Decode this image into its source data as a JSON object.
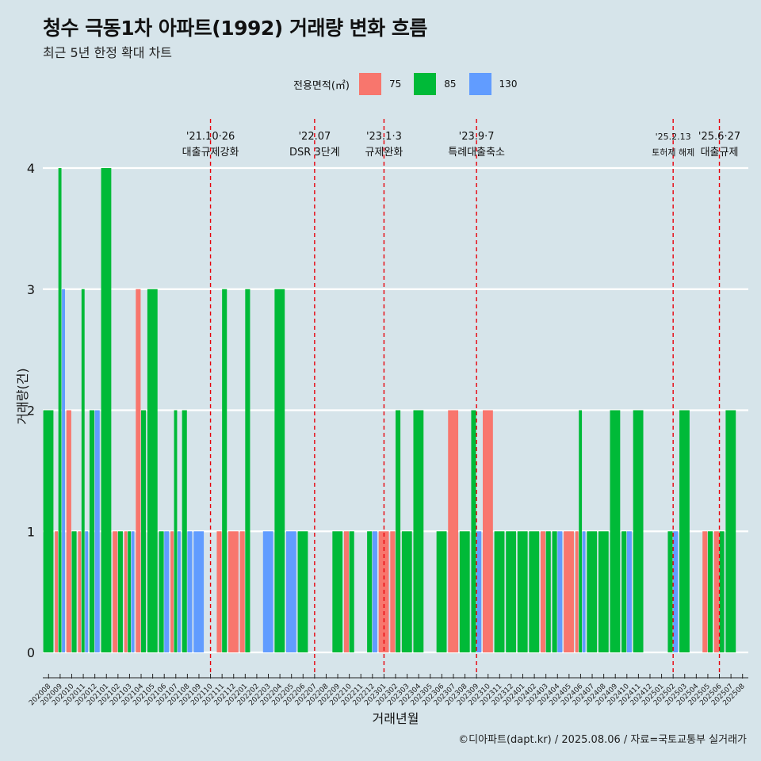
{
  "title": "청수 극동1차 아파트(1992) 거래량 변화 흐름",
  "subtitle": "최근 5년 한정 확대 차트",
  "caption": "©디아파트(dapt.kr) / 2025.08.06 / 자료=국토교통부 실거래가",
  "legend": {
    "title": "전용면적(㎡)",
    "items": [
      {
        "label": "75",
        "color": "#f8766d"
      },
      {
        "label": "85",
        "color": "#00ba38"
      },
      {
        "label": "130",
        "color": "#619cff"
      }
    ]
  },
  "chart_data": {
    "type": "bar",
    "xlabel": "거래년월",
    "ylabel": "거래량(건)",
    "ylim": [
      0,
      4
    ],
    "yticks": [
      0,
      1,
      2,
      3,
      4
    ],
    "months": [
      "202008",
      "202009",
      "202010",
      "202011",
      "202012",
      "202101",
      "202102",
      "202103",
      "202104",
      "202105",
      "202106",
      "202107",
      "202108",
      "202109",
      "202110",
      "202111",
      "202112",
      "202201",
      "202202",
      "202203",
      "202204",
      "202205",
      "202206",
      "202207",
      "202208",
      "202209",
      "202210",
      "202211",
      "202212",
      "202301",
      "202302",
      "202303",
      "202304",
      "202305",
      "202306",
      "202307",
      "202308",
      "202309",
      "202310",
      "202311",
      "202312",
      "202401",
      "202402",
      "202403",
      "202404",
      "202405",
      "202406",
      "202407",
      "202408",
      "202409",
      "202410",
      "202411",
      "202412",
      "202501",
      "202502",
      "202503",
      "202504",
      "202505",
      "202506",
      "202507",
      "202508"
    ],
    "series_colors": {
      "75": "#f8766d",
      "85": "#00ba38",
      "130": "#619cff"
    },
    "bars": [
      {
        "month": "202008",
        "groups": [
          [
            "85",
            2
          ]
        ]
      },
      {
        "month": "202009",
        "groups": [
          [
            "75",
            1
          ],
          [
            "85",
            4
          ],
          [
            "130",
            3
          ]
        ]
      },
      {
        "month": "202010",
        "groups": [
          [
            "75",
            2
          ],
          [
            "85",
            1
          ]
        ]
      },
      {
        "month": "202011",
        "groups": [
          [
            "75",
            1
          ],
          [
            "85",
            3
          ],
          [
            "130",
            1
          ]
        ]
      },
      {
        "month": "202012",
        "groups": [
          [
            "85",
            2
          ],
          [
            "130",
            2
          ]
        ]
      },
      {
        "month": "202101",
        "groups": [
          [
            "85",
            4
          ]
        ]
      },
      {
        "month": "202102",
        "groups": [
          [
            "75",
            1
          ],
          [
            "85",
            1
          ]
        ]
      },
      {
        "month": "202103",
        "groups": [
          [
            "75",
            1
          ],
          [
            "85",
            1
          ],
          [
            "130",
            1
          ]
        ]
      },
      {
        "month": "202104",
        "groups": [
          [
            "75",
            3
          ],
          [
            "85",
            2
          ]
        ]
      },
      {
        "month": "202105",
        "groups": [
          [
            "85",
            3
          ]
        ]
      },
      {
        "month": "202106",
        "groups": [
          [
            "85",
            1
          ],
          [
            "130",
            1
          ]
        ]
      },
      {
        "month": "202107",
        "groups": [
          [
            "75",
            1
          ],
          [
            "85",
            2
          ],
          [
            "130",
            1
          ]
        ]
      },
      {
        "month": "202108",
        "groups": [
          [
            "85",
            2
          ],
          [
            "130",
            1
          ]
        ]
      },
      {
        "month": "202109",
        "groups": [
          [
            "130",
            1
          ]
        ]
      },
      {
        "month": "202110",
        "groups": []
      },
      {
        "month": "202111",
        "groups": [
          [
            "75",
            1
          ],
          [
            "85",
            3
          ]
        ]
      },
      {
        "month": "202112",
        "groups": [
          [
            "75",
            1
          ]
        ]
      },
      {
        "month": "202201",
        "groups": [
          [
            "75",
            1
          ],
          [
            "85",
            3
          ]
        ]
      },
      {
        "month": "202202",
        "groups": []
      },
      {
        "month": "202203",
        "groups": [
          [
            "130",
            1
          ]
        ]
      },
      {
        "month": "202204",
        "groups": [
          [
            "85",
            3
          ]
        ]
      },
      {
        "month": "202205",
        "groups": [
          [
            "130",
            1
          ]
        ]
      },
      {
        "month": "202206",
        "groups": [
          [
            "85",
            1
          ]
        ]
      },
      {
        "month": "202207",
        "groups": []
      },
      {
        "month": "202208",
        "groups": []
      },
      {
        "month": "202209",
        "groups": [
          [
            "85",
            1
          ]
        ]
      },
      {
        "month": "202210",
        "groups": [
          [
            "75",
            1
          ],
          [
            "85",
            1
          ]
        ]
      },
      {
        "month": "202211",
        "groups": []
      },
      {
        "month": "202212",
        "groups": [
          [
            "85",
            1
          ],
          [
            "130",
            1
          ]
        ]
      },
      {
        "month": "202301",
        "groups": [
          [
            "75",
            1
          ]
        ]
      },
      {
        "month": "202302",
        "groups": [
          [
            "75",
            1
          ],
          [
            "85",
            2
          ]
        ]
      },
      {
        "month": "202303",
        "groups": [
          [
            "85",
            1
          ]
        ]
      },
      {
        "month": "202304",
        "groups": [
          [
            "85",
            2
          ]
        ]
      },
      {
        "month": "202305",
        "groups": []
      },
      {
        "month": "202306",
        "groups": [
          [
            "85",
            1
          ]
        ]
      },
      {
        "month": "202307",
        "groups": [
          [
            "75",
            2
          ]
        ]
      },
      {
        "month": "202308",
        "groups": [
          [
            "85",
            1
          ]
        ]
      },
      {
        "month": "202309",
        "groups": [
          [
            "85",
            2
          ],
          [
            "130",
            1
          ]
        ]
      },
      {
        "month": "202310",
        "groups": [
          [
            "75",
            2
          ]
        ]
      },
      {
        "month": "202311",
        "groups": [
          [
            "85",
            1
          ]
        ]
      },
      {
        "month": "202312",
        "groups": [
          [
            "85",
            1
          ]
        ]
      },
      {
        "month": "202401",
        "groups": [
          [
            "85",
            1
          ]
        ]
      },
      {
        "month": "202402",
        "groups": [
          [
            "85",
            1
          ]
        ]
      },
      {
        "month": "202403",
        "groups": [
          [
            "75",
            1
          ],
          [
            "85",
            1
          ]
        ]
      },
      {
        "month": "202404",
        "groups": [
          [
            "85",
            1
          ],
          [
            "130",
            1
          ]
        ]
      },
      {
        "month": "202405",
        "groups": [
          [
            "75",
            1
          ]
        ]
      },
      {
        "month": "202406",
        "groups": [
          [
            "75",
            1
          ],
          [
            "85",
            2
          ],
          [
            "130",
            1
          ]
        ]
      },
      {
        "month": "202407",
        "groups": [
          [
            "85",
            1
          ]
        ]
      },
      {
        "month": "202408",
        "groups": [
          [
            "85",
            1
          ]
        ]
      },
      {
        "month": "202409",
        "groups": [
          [
            "85",
            2
          ]
        ]
      },
      {
        "month": "202410",
        "groups": [
          [
            "85",
            1
          ],
          [
            "130",
            1
          ]
        ]
      },
      {
        "month": "202411",
        "groups": [
          [
            "85",
            2
          ]
        ]
      },
      {
        "month": "202412",
        "groups": []
      },
      {
        "month": "202501",
        "groups": []
      },
      {
        "month": "202502",
        "groups": [
          [
            "85",
            1
          ],
          [
            "130",
            1
          ]
        ]
      },
      {
        "month": "202503",
        "groups": [
          [
            "85",
            2
          ]
        ]
      },
      {
        "month": "202504",
        "groups": []
      },
      {
        "month": "202505",
        "groups": [
          [
            "75",
            1
          ],
          [
            "85",
            1
          ]
        ]
      },
      {
        "month": "202506",
        "groups": [
          [
            "75",
            1
          ],
          [
            "85",
            1
          ]
        ]
      },
      {
        "month": "202507",
        "groups": [
          [
            "85",
            2
          ]
        ]
      },
      {
        "month": "202508",
        "groups": []
      }
    ],
    "events": [
      {
        "month": "202110",
        "date": "'21.10·26",
        "label": "대출규제강화"
      },
      {
        "month": "202207",
        "date": "'22.07",
        "label": "DSR 3단계"
      },
      {
        "month": "202301",
        "date": "'23.1·3",
        "label": "규제완화"
      },
      {
        "month": "202309",
        "date": "'23.9·7",
        "label": "특례대출축소"
      },
      {
        "month": "202502",
        "date": "'25.2.13",
        "label": "토허제 해제"
      },
      {
        "month": "202506",
        "date": "'25.6·27",
        "label": "대출규제"
      }
    ]
  }
}
